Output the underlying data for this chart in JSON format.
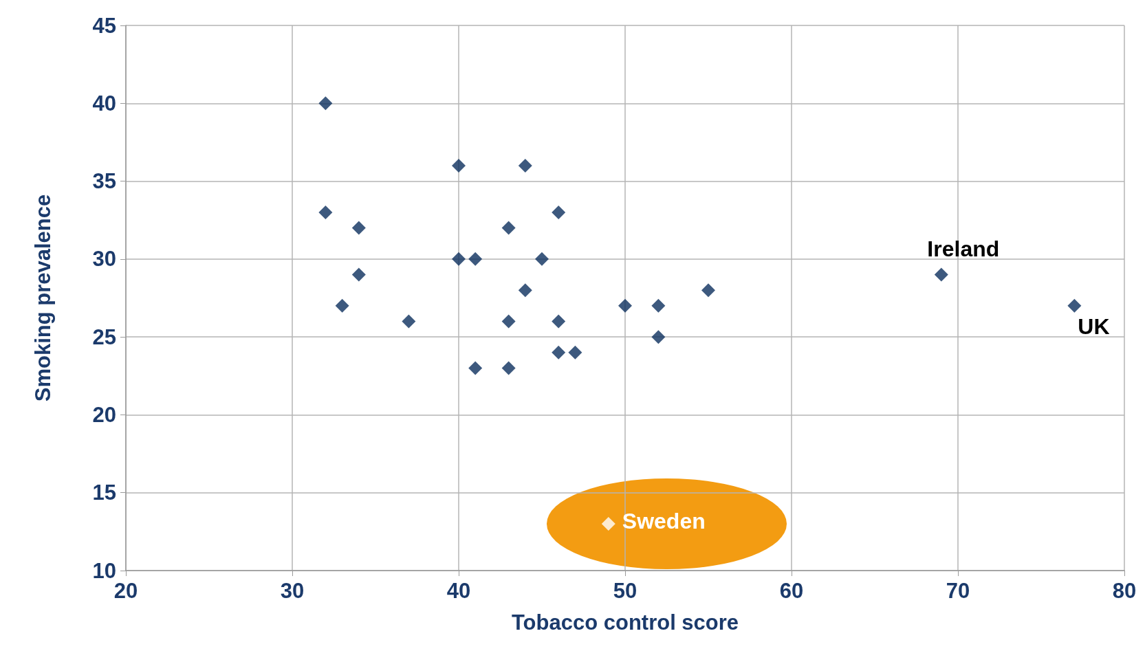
{
  "chart_data": {
    "type": "scatter",
    "xlabel": "Tobacco control score",
    "ylabel": "Smoking prevalence",
    "xlim": [
      20,
      80
    ],
    "xticks": [
      20,
      30,
      40,
      50,
      60,
      70,
      80
    ],
    "ylim": [
      10,
      45
    ],
    "yticks": [
      10,
      15,
      20,
      25,
      30,
      35,
      40,
      45
    ],
    "grid": true,
    "marker": "diamond",
    "series": [
      {
        "color": "#0d2f5e",
        "x": [
          32,
          40,
          44,
          32,
          46,
          34,
          43,
          40,
          41,
          45,
          34,
          69,
          44,
          55,
          33,
          50,
          52,
          77,
          37,
          43,
          46,
          52,
          46,
          47,
          41,
          43
        ],
        "values": [
          40,
          36,
          36,
          33,
          33,
          32,
          32,
          30,
          30,
          30,
          29,
          29,
          28,
          28,
          27,
          27,
          27,
          27,
          26,
          26,
          26,
          25,
          24,
          24,
          23,
          23
        ]
      },
      {
        "color": "#ffffff",
        "x": [
          49
        ],
        "values": [
          13
        ]
      }
    ],
    "annotations": [
      {
        "text": "Ireland",
        "x": 69,
        "y": 29
      },
      {
        "text": "UK",
        "x": 77,
        "y": 27
      },
      {
        "text": "Sweden",
        "x": 49,
        "y": 13
      }
    ]
  }
}
